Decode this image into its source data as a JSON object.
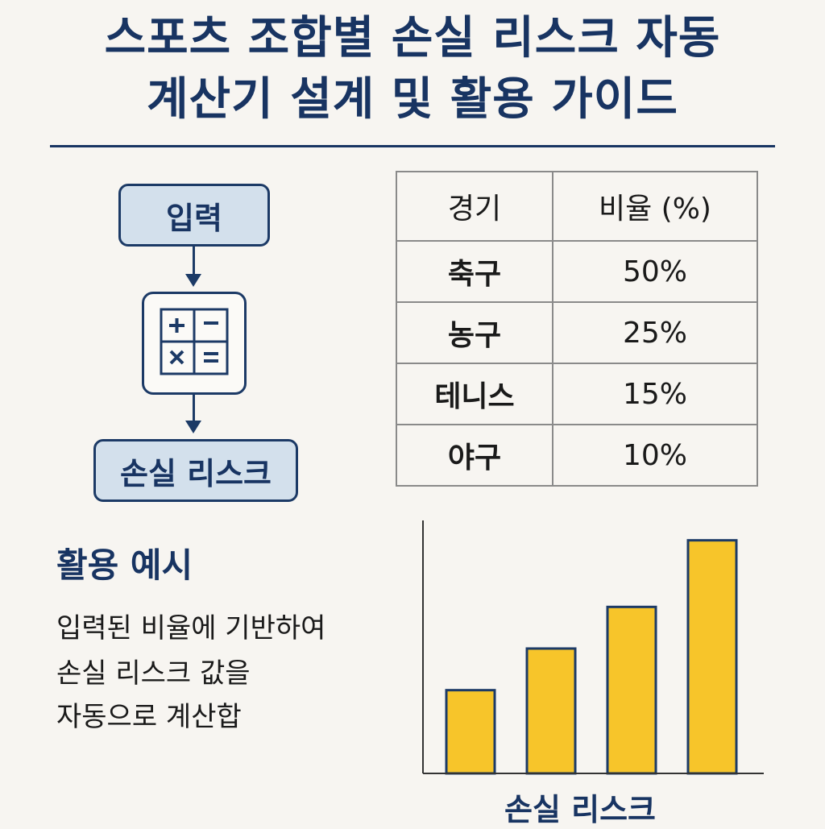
{
  "title": {
    "line1": "스포츠 조합별 손실 리스크 자동",
    "line2": "계산기 설계 및 활용 가이드"
  },
  "flow": {
    "input_label": "입력",
    "calculator_icon": "calculator-icon",
    "output_label": "손실 리스크"
  },
  "table": {
    "headers": [
      "경기",
      "비율 (%)"
    ],
    "rows": [
      {
        "game": "축구",
        "ratio": "50%"
      },
      {
        "game": "농구",
        "ratio": "25%"
      },
      {
        "game": "테니스",
        "ratio": "15%"
      },
      {
        "game": "야구",
        "ratio": "10%"
      }
    ]
  },
  "example": {
    "heading": "활용 예시",
    "lines": [
      "입력된 비율에 기반하여",
      "손실 리스크 값을",
      "자동으로 계산합"
    ]
  },
  "colors": {
    "navy": "#183462",
    "bar_fill": "#f7c52a",
    "box_fill": "#d3e0ec"
  },
  "chart_data": {
    "type": "bar",
    "categories": [
      "",
      "",
      "",
      ""
    ],
    "values": [
      1.0,
      1.5,
      2.0,
      2.8
    ],
    "title": "",
    "xlabel": "손실 리스크",
    "ylabel": "",
    "ylim": [
      0,
      3.0
    ],
    "grid": false,
    "bar_color": "#f7c52a"
  }
}
